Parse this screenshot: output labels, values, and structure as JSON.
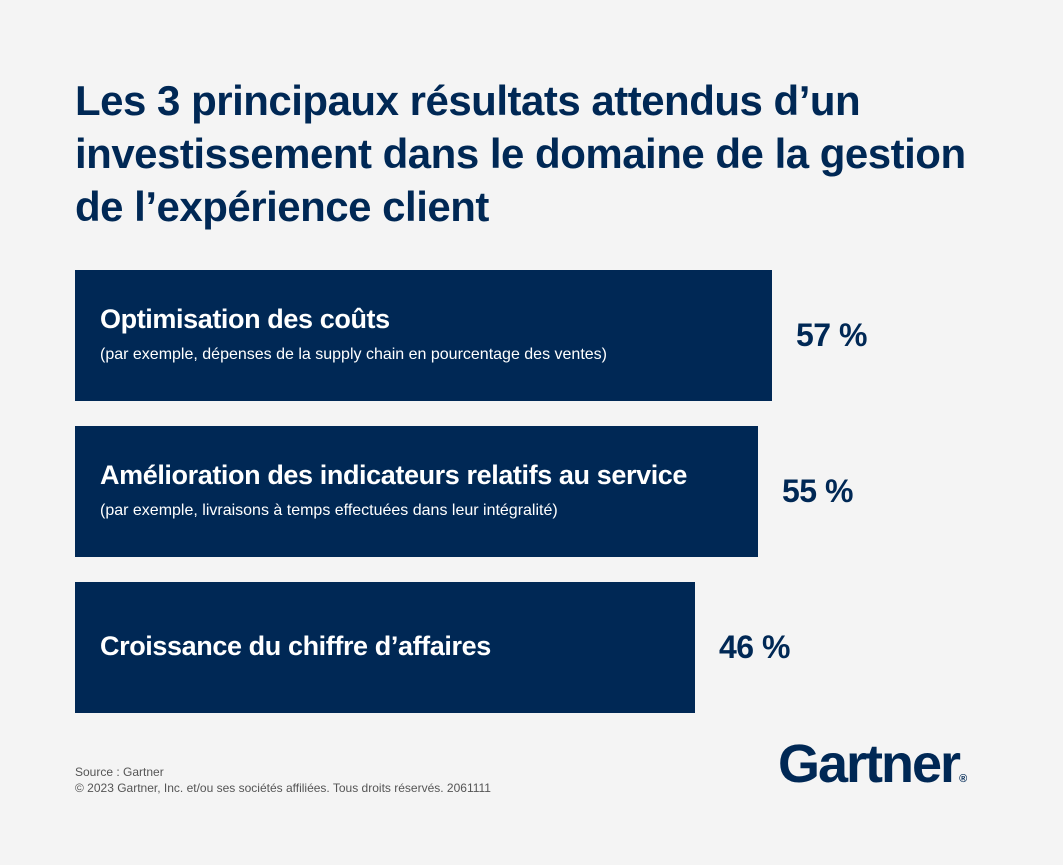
{
  "chart_data": {
    "type": "bar",
    "orientation": "horizontal",
    "title": "Les 3 principaux résultats attendus d’un investissement dans le domaine de la gestion de l’expérience client",
    "categories": [
      "Optimisation des coûts",
      "Amélioration des indicateurs relatifs au service",
      "Croissance du chiffre d’affaires"
    ],
    "subtitles": [
      "(par exemple, dépenses de la supply chain en pourcentage des ventes)",
      "(par exemple, livraisons à temps effectuées dans leur intégralité)",
      ""
    ],
    "values": [
      57,
      55,
      46
    ],
    "value_labels": [
      "57 %",
      "55 %",
      "46 %"
    ],
    "unit": "%",
    "grid": false,
    "bar_color": "#002855",
    "background": "#f4f4f4"
  },
  "footer": {
    "source": "Source : Gartner",
    "copyright": "© 2023 Gartner, Inc. et/ou ses sociétés affiliées. Tous droits réservés. 2061111"
  },
  "logo": {
    "text": "Gartner"
  }
}
